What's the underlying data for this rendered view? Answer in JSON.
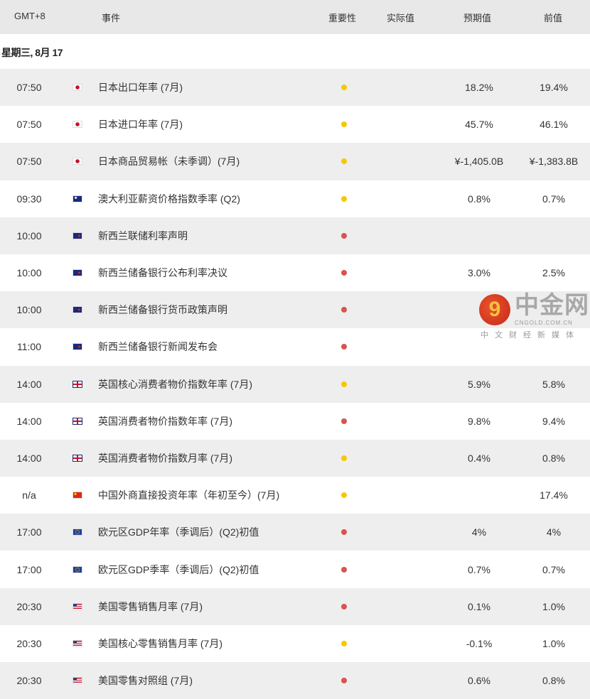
{
  "header": {
    "time": "GMT+8",
    "event": "事件",
    "importance": "重要性",
    "actual": "实际值",
    "forecast": "预期值",
    "previous": "前值"
  },
  "date": "星期三, 8月 17",
  "colors": {
    "high": "#d9534f",
    "medium": "#f5c800"
  },
  "rows": [
    {
      "time": "07:50",
      "flag": "jp",
      "event": "日本出口年率 (7月)",
      "importance": "medium",
      "actual": "",
      "forecast": "18.2%",
      "previous": "19.4%"
    },
    {
      "time": "07:50",
      "flag": "jp",
      "event": "日本进口年率 (7月)",
      "importance": "medium",
      "actual": "",
      "forecast": "45.7%",
      "previous": "46.1%"
    },
    {
      "time": "07:50",
      "flag": "jp",
      "event": "日本商品贸易帐（未季调）(7月)",
      "importance": "medium",
      "actual": "",
      "forecast": "¥-1,405.0B",
      "previous": "¥-1,383.8B"
    },
    {
      "time": "09:30",
      "flag": "au",
      "event": "澳大利亚薪资价格指数季率 (Q2)",
      "importance": "medium",
      "actual": "",
      "forecast": "0.8%",
      "previous": "0.7%"
    },
    {
      "time": "10:00",
      "flag": "nz",
      "event": "新西兰联储利率声明",
      "importance": "high",
      "actual": "",
      "forecast": "",
      "previous": ""
    },
    {
      "time": "10:00",
      "flag": "nz",
      "event": "新西兰储备银行公布利率决议",
      "importance": "high",
      "actual": "",
      "forecast": "3.0%",
      "previous": "2.5%"
    },
    {
      "time": "10:00",
      "flag": "nz",
      "event": "新西兰储备银行货币政策声明",
      "importance": "high",
      "actual": "",
      "forecast": "",
      "previous": ""
    },
    {
      "time": "11:00",
      "flag": "nz",
      "event": "新西兰储备银行新闻发布会",
      "importance": "high",
      "actual": "",
      "forecast": "",
      "previous": ""
    },
    {
      "time": "14:00",
      "flag": "gb",
      "event": "英国核心消费者物价指数年率 (7月)",
      "importance": "medium",
      "actual": "",
      "forecast": "5.9%",
      "previous": "5.8%"
    },
    {
      "time": "14:00",
      "flag": "gb",
      "event": "英国消费者物价指数年率 (7月)",
      "importance": "high",
      "actual": "",
      "forecast": "9.8%",
      "previous": "9.4%"
    },
    {
      "time": "14:00",
      "flag": "gb",
      "event": "英国消费者物价指数月率 (7月)",
      "importance": "medium",
      "actual": "",
      "forecast": "0.4%",
      "previous": "0.8%"
    },
    {
      "time": "n/a",
      "flag": "cn",
      "event": "中国外商直接投资年率（年初至今）(7月)",
      "importance": "medium",
      "actual": "",
      "forecast": "",
      "previous": "17.4%"
    },
    {
      "time": "17:00",
      "flag": "eu",
      "event": "欧元区GDP年率（季调后）(Q2)初值",
      "importance": "high",
      "actual": "",
      "forecast": "4%",
      "previous": "4%"
    },
    {
      "time": "17:00",
      "flag": "eu",
      "event": "欧元区GDP季率（季调后）(Q2)初值",
      "importance": "high",
      "actual": "",
      "forecast": "0.7%",
      "previous": "0.7%"
    },
    {
      "time": "20:30",
      "flag": "us",
      "event": "美国零售销售月率 (7月)",
      "importance": "high",
      "actual": "",
      "forecast": "0.1%",
      "previous": "1.0%"
    },
    {
      "time": "20:30",
      "flag": "us",
      "event": "美国核心零售销售月率 (7月)",
      "importance": "medium",
      "actual": "",
      "forecast": "-0.1%",
      "previous": "1.0%"
    },
    {
      "time": "20:30",
      "flag": "us",
      "event": "美国零售对照组 (7月)",
      "importance": "high",
      "actual": "",
      "forecast": "0.6%",
      "previous": "0.8%"
    }
  ],
  "watermark": {
    "name": "中金网",
    "url": "CNGOLD.COM.CN",
    "slogan": "中文财经新媒体"
  }
}
